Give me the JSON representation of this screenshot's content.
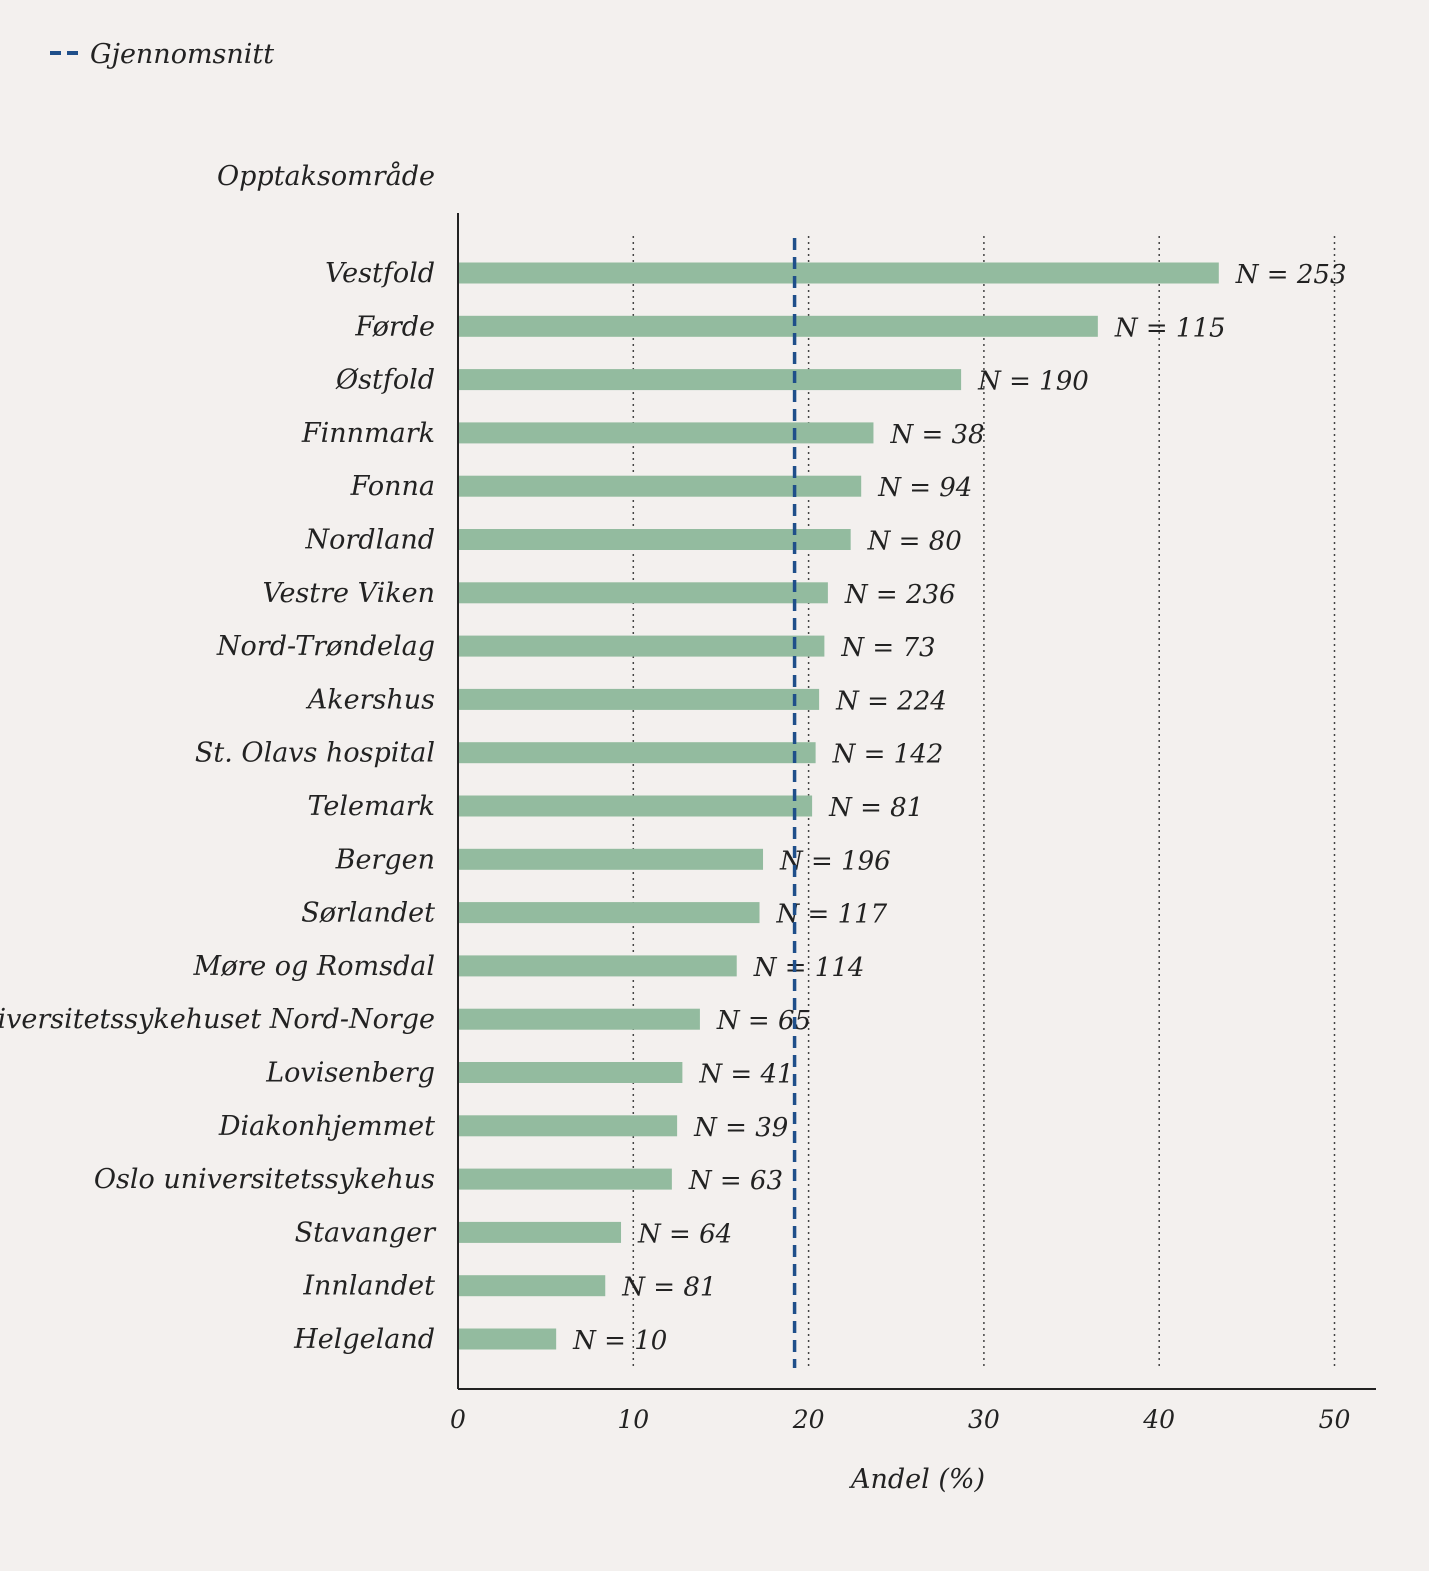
{
  "chart_data": {
    "type": "bar",
    "orientation": "horizontal",
    "ylabel": "Opptaksområde",
    "xlabel": "Andel (%)",
    "xlim": [
      0,
      52.3
    ],
    "xticks": [
      0,
      10,
      20,
      30,
      40,
      50
    ],
    "grid": "vertical dotted",
    "average": {
      "label": "Gjennomsnitt",
      "value": 19.2
    },
    "colors": {
      "bar": "#93bb9f",
      "average": "#1f4f8a",
      "axis": "#222222",
      "grid": "#444444"
    },
    "categories": [
      "Vestfold",
      "Førde",
      "Østfold",
      "Finnmark",
      "Fonna",
      "Nordland",
      "Vestre Viken",
      "Nord-Trøndelag",
      "Akershus",
      "St. Olavs hospital",
      "Telemark",
      "Bergen",
      "Sørlandet",
      "Møre og Romsdal",
      "Universitetssykehuset Nord-Norge",
      "Lovisenberg",
      "Diakonhjemmet",
      "Oslo universitetssykehus",
      "Stavanger",
      "Innlandet",
      "Helgeland"
    ],
    "values": [
      43.4,
      36.5,
      28.7,
      23.7,
      23.0,
      22.4,
      21.1,
      20.9,
      20.6,
      20.4,
      20.2,
      17.4,
      17.2,
      15.9,
      13.8,
      12.8,
      12.5,
      12.2,
      9.3,
      8.4,
      5.6
    ],
    "data_labels": [
      "N = 253",
      "N = 115",
      "N = 190",
      "N = 38",
      "N = 94",
      "N = 80",
      "N = 236",
      "N = 73",
      "N = 224",
      "N = 142",
      "N = 81",
      "N = 196",
      "N = 117",
      "N = 114",
      "N = 65",
      "N = 41",
      "N = 39",
      "N = 63",
      "N = 64",
      "N = 81",
      "N = 10"
    ]
  }
}
